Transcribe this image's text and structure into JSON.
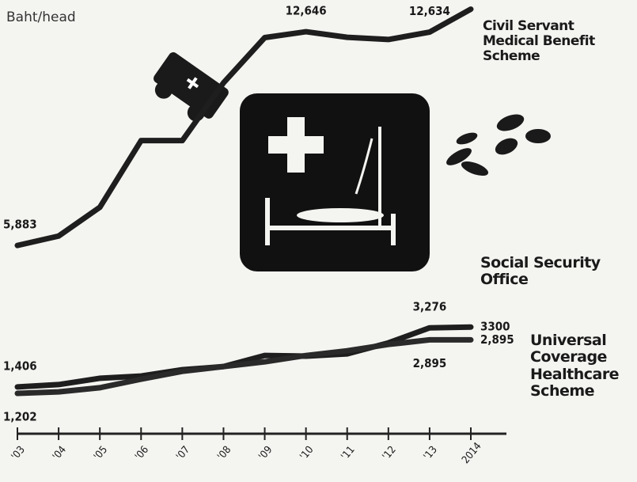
{
  "chart_data": {
    "type": "line",
    "y_label": "Baht/head",
    "categories": [
      "'03",
      "'04",
      "'05",
      "'06",
      "'07",
      "'08",
      "'09",
      "'10",
      "'11",
      "'12",
      "'13",
      "2014"
    ],
    "ylim": [
      0,
      13600
    ],
    "series": [
      {
        "name": "Civil Servant Medical Benefit Scheme",
        "color": "#1e1e1e",
        "values": [
          5883,
          6180,
          7090,
          9200,
          9200,
          11030,
          12460,
          12646,
          12470,
          12400,
          12634,
          13360
        ],
        "value_labels": [
          "5,883",
          null,
          null,
          null,
          null,
          null,
          null,
          "12,646",
          null,
          null,
          "12,634",
          null
        ]
      },
      {
        "name": "Social Security Office",
        "color": "#1e1e1e",
        "values": [
          1406,
          1480,
          1680,
          1750,
          1950,
          2050,
          2400,
          2380,
          2450,
          2800,
          3276,
          3300
        ],
        "value_labels": [
          "1,406",
          null,
          null,
          null,
          null,
          null,
          null,
          null,
          null,
          null,
          "3,276",
          "3300"
        ]
      },
      {
        "name": "Universal Coverage Healthcare Scheme",
        "color": "#2a2a2a",
        "values": [
          1202,
          1250,
          1380,
          1650,
          1900,
          2050,
          2200,
          2400,
          2550,
          2750,
          2895,
          2895
        ],
        "value_labels": [
          "1,202",
          null,
          null,
          null,
          null,
          null,
          null,
          null,
          null,
          null,
          "2,895",
          "2,895"
        ]
      }
    ]
  }
}
